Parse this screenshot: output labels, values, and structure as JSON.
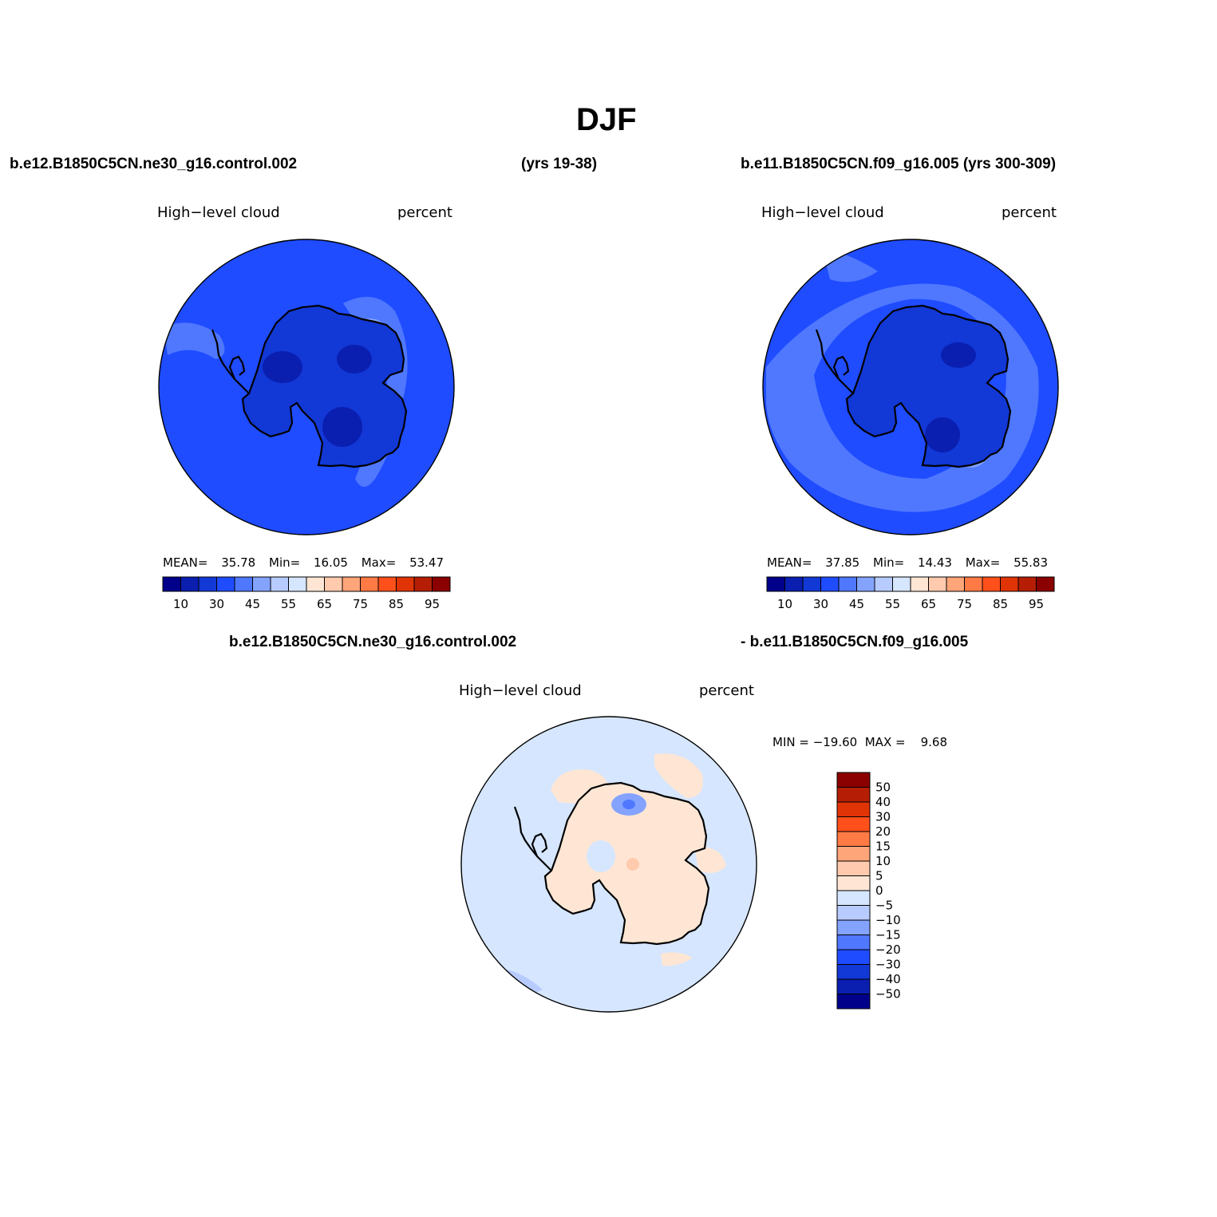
{
  "figure": {
    "title": "DJF",
    "left_case": "b.e12.B1850C5CN.ne30_g16.control.002",
    "left_years": "(yrs 19-38)",
    "right_case": "b.e11.B1850C5CN.f09_g16.005 (yrs 300-309)",
    "diff_case_a": "b.e12.B1850C5CN.ne30_g16.control.002",
    "diff_case_b": "- b.e11.B1850C5CN.f09_g16.005"
  },
  "panels": [
    {
      "variable": "High−level cloud",
      "units": "percent",
      "mean_label": "MEAN=",
      "mean": "35.78",
      "min_label": "Min=",
      "min": "16.05",
      "max_label": "Max=",
      "max": "53.47"
    },
    {
      "variable": "High−level cloud",
      "units": "percent",
      "mean_label": "MEAN=",
      "mean": "37.85",
      "min_label": "Min=",
      "min": "14.43",
      "max_label": "Max=",
      "max": "55.83"
    }
  ],
  "diff_panel": {
    "variable": "High−level cloud",
    "units": "percent",
    "minmax_text": "MIN = −19.60  MAX =    9.68"
  },
  "colorbar_abs": {
    "labels": [
      "10",
      "30",
      "45",
      "55",
      "65",
      "75",
      "85",
      "95"
    ],
    "colors": [
      "#00008b",
      "#0a1fb0",
      "#1238d6",
      "#1f4cff",
      "#4f78ff",
      "#84a3ff",
      "#b7cbff",
      "#d6e6ff",
      "#ffe6d4",
      "#ffcaad",
      "#ffa57a",
      "#ff7a45",
      "#ff501c",
      "#e03406",
      "#b51e04",
      "#8b0000"
    ]
  },
  "colorbar_diff": {
    "labels": [
      "50",
      "40",
      "30",
      "20",
      "15",
      "10",
      "5",
      "0",
      "−5",
      "−10",
      "−15",
      "−20",
      "−30",
      "−40",
      "−50"
    ],
    "colors_top_to_bottom": [
      "#8b0000",
      "#b51e04",
      "#e03406",
      "#ff501c",
      "#ff7a45",
      "#ffa57a",
      "#ffcaad",
      "#ffe6d4",
      "#d6e6ff",
      "#b7cbff",
      "#84a3ff",
      "#4f78ff",
      "#1f4cff",
      "#1238d6",
      "#0a1fb0",
      "#00008b"
    ]
  },
  "map_colors": {
    "ocean_left": "#1f4cff",
    "ocean_right": "#1f4cff",
    "ocean_diff": "#d6e6ff",
    "coast": "#000000"
  }
}
